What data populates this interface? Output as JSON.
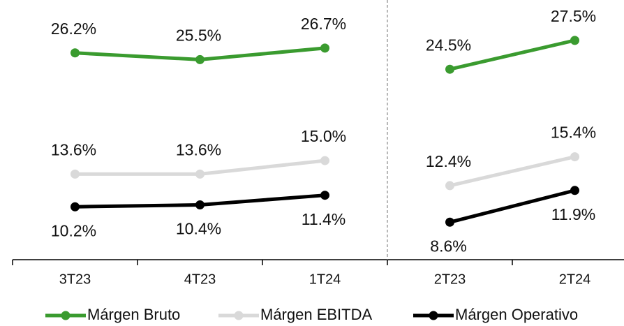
{
  "chart_data": {
    "type": "line",
    "categories": [
      "3T23",
      "4T23",
      "1T24",
      "2T23",
      "2T24"
    ],
    "divider_index": 3,
    "ylim": [
      4.7,
      31.7
    ],
    "series": [
      {
        "name": "Márgen Bruto",
        "color": "#3a9b2f",
        "values": [
          26.2,
          25.5,
          26.7,
          24.5,
          27.5
        ],
        "value_labels": [
          "26.2%",
          "25.5%",
          "26.7%",
          "24.5%",
          "27.5%"
        ],
        "label_position": "above"
      },
      {
        "name": "Márgen EBITDA",
        "color": "#d9d9d9",
        "values": [
          13.6,
          13.6,
          15.0,
          12.4,
          15.4
        ],
        "value_labels": [
          "13.6%",
          "13.6%",
          "15.0%",
          "12.4%",
          "15.4%"
        ],
        "label_position": "above"
      },
      {
        "name": "Márgen Operativo",
        "color": "#000000",
        "values": [
          10.2,
          10.4,
          11.4,
          8.6,
          11.9
        ],
        "value_labels": [
          "10.2%",
          "10.4%",
          "11.4%",
          "8.6%",
          "11.9%"
        ],
        "label_position": "below"
      }
    ],
    "legend": "bottom"
  }
}
